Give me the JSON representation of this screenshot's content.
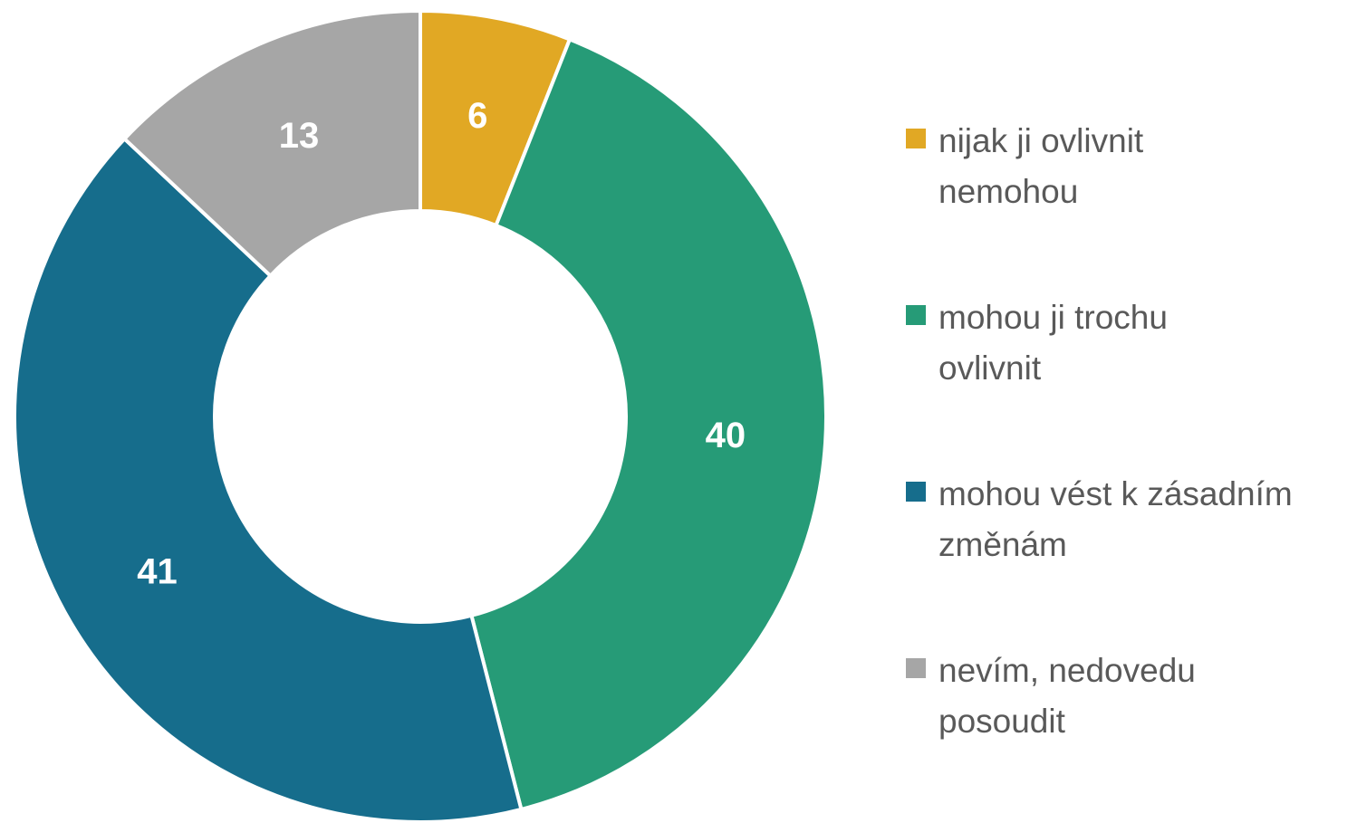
{
  "chart_data": {
    "type": "donut",
    "categories": [
      "nijak ji ovlivnit\nnemohou",
      "mohou ji trochu\novlivnit",
      "mohou vést k zásadním\nzměnám",
      "nevím, nedovedu\nposoudit"
    ],
    "values": [
      6,
      40,
      41,
      13
    ],
    "colors": [
      "#E1A824",
      "#269B77",
      "#166D8C",
      "#A6A6A6"
    ],
    "legend": "right"
  }
}
